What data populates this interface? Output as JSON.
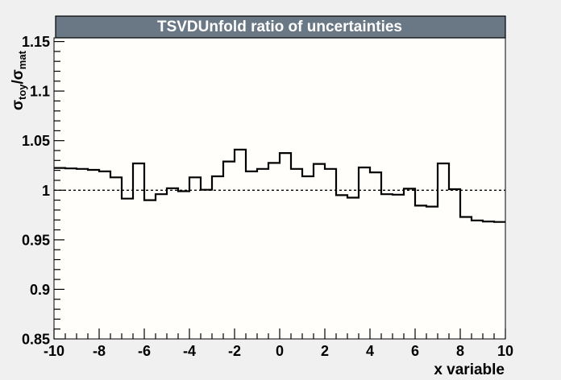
{
  "colors": {
    "canvas_bg": "#f0f0f0",
    "plot_bg": "#fffefa",
    "title_bar": "#6a7886",
    "title_text": "#ffffff",
    "line": "#000000",
    "frame_border": "#000000"
  },
  "chart_data": {
    "type": "line",
    "subtype": "step-histogram",
    "title": "TSVDUnfold ratio of uncertainties",
    "xlabel": "x variable",
    "ylabel": "sigma_toy/sigma_mat",
    "ylabel_parts": {
      "sigma": "σ",
      "sub1": "toy",
      "slash": "/",
      "sub2": "mat"
    },
    "xlim": [
      -10,
      10
    ],
    "ylim": [
      0.85,
      1.1537
    ],
    "grid": false,
    "legend": null,
    "x_major_ticks": [
      {
        "value": -10,
        "label": "-10"
      },
      {
        "value": -8,
        "label": "-8"
      },
      {
        "value": -6,
        "label": "-6"
      },
      {
        "value": -4,
        "label": "-4"
      },
      {
        "value": -2,
        "label": "-2"
      },
      {
        "value": 0,
        "label": "0"
      },
      {
        "value": 2,
        "label": "2"
      },
      {
        "value": 4,
        "label": "4"
      },
      {
        "value": 6,
        "label": "6"
      },
      {
        "value": 8,
        "label": "8"
      },
      {
        "value": 10,
        "label": "10"
      }
    ],
    "x_minor_step": 0.5,
    "y_major_ticks": [
      {
        "value": 0.85,
        "label": "0.85"
      },
      {
        "value": 0.9,
        "label": "0.9"
      },
      {
        "value": 0.95,
        "label": "0.95"
      },
      {
        "value": 1.0,
        "label": "1"
      },
      {
        "value": 1.05,
        "label": "1.05"
      },
      {
        "value": 1.1,
        "label": "1.1"
      },
      {
        "value": 1.15,
        "label": "1.15"
      }
    ],
    "y_minor_step": 0.01,
    "reference_line": {
      "y": 1.0,
      "style": "dashed"
    },
    "bin_start": -10,
    "bin_width": 0.5,
    "values": [
      1.0225,
      1.022,
      1.0215,
      1.0205,
      1.019,
      1.013,
      0.9915,
      1.027,
      0.99,
      0.996,
      1.002,
      0.999,
      1.013,
      1.0005,
      1.014,
      1.029,
      1.041,
      1.019,
      1.0215,
      1.0275,
      1.0375,
      1.0215,
      1.014,
      1.0265,
      1.0215,
      0.995,
      0.9925,
      1.023,
      1.018,
      0.996,
      0.9955,
      1.0015,
      0.9845,
      0.9835,
      1.027,
      1.001,
      0.973,
      0.9695,
      0.9685,
      0.968
    ]
  }
}
